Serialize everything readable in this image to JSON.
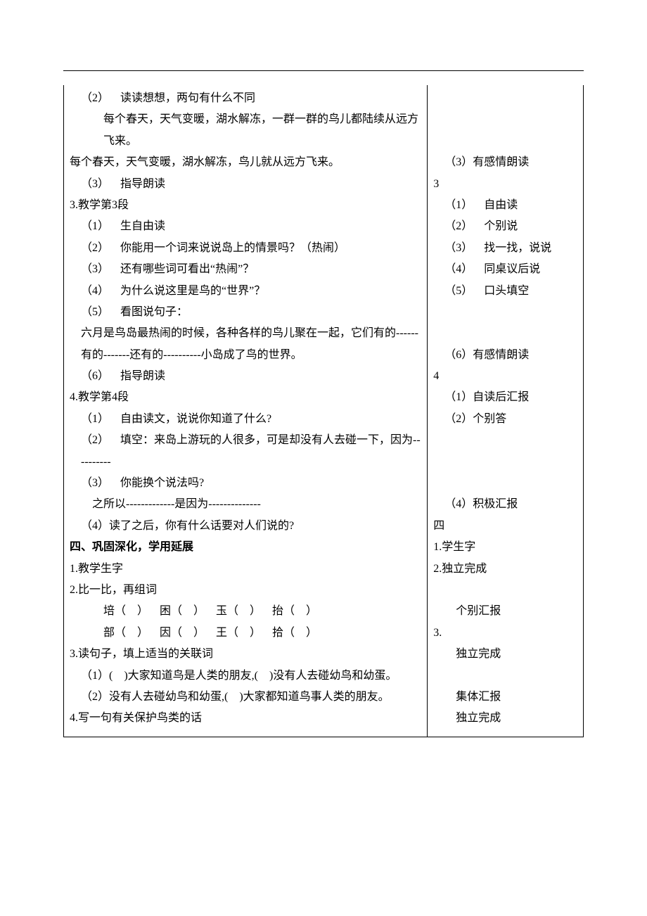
{
  "left": {
    "sec2_item1": "（2） 读读想想，两句有什么不同",
    "sec2_item1_a": "每个春天，天气变暖，湖水解冻，一群一群的鸟儿都陆续从远方飞来。",
    "sec2_item1_b": "每个春天，天气变暖，湖水解冻，鸟儿就从远方飞来。",
    "sec2_item2": "（3） 指导朗读",
    "sec3_title": "3.教学第3段",
    "sec3_1": "（1） 生自由读",
    "sec3_2": "（2） 你能用一个词来说说岛上的情景吗？（热闹）",
    "sec3_3": "（3） 还有哪些词可看出“热闹”？",
    "sec3_4": "（4） 为什么说这里是鸟的“世界”？",
    "sec3_5": "（5） 看图说句子：",
    "sec3_5_a": "六月是鸟岛最热闹的时候，各种各样的鸟儿聚在一起，它们有的------有的-------还有的----------小岛成了鸟的世界。",
    "sec3_6": "（6） 指导朗读",
    "sec4_title": "4.教学第4段",
    "sec4_1": "（1） 自由读文，说说你知道了什么?",
    "sec4_2": "（2） 填空：来岛上游玩的人很多，可是却没有人去碰一下，因为----------",
    "sec4_3": "（3） 你能换个说法吗?",
    "sec4_3_a": "之所以-------------是因为--------------",
    "sec4_4": "（4）读了之后，你有什么话要对人们说的?",
    "part4_title": "四、巩固深化，学用延展",
    "p4_1": "1.教学生字",
    "p4_2": "2.比一比，再组词",
    "p4_2_row1": "培（ ） 困（ ） 玉（ ） 抬（ ）",
    "p4_2_row2": "部（ ） 因（ ） 王（ ） 拾（ ）",
    "p4_3": "3.读句子，填上适当的关联词",
    "p4_3_1": "（1）( )大家知道鸟是人类的朋友,( )没有人去碰幼鸟和幼蛋。",
    "p4_3_2": "（2）没有人去碰幼鸟和幼蛋,( )大家都知道鸟事人类的朋友。",
    "p4_4": "4.写一句有关保护鸟类的话"
  },
  "right": {
    "r3_read": "（3）有感情朗读",
    "r3": "3",
    "r3_1": "（1） 自由读",
    "r3_2": "（2） 个别说",
    "r3_3": "（3） 找一找，说说",
    "r3_4": "（4） 同桌议后说",
    "r3_5": "（5） 口头填空",
    "r3_6": "（6）有感情朗读",
    "r4": "4",
    "r4_1": "（1）自读后汇报",
    "r4_2": "（2）个别答",
    "r4_4": "（4）积极汇报",
    "r_si": "四",
    "r_p1": "1.学生字",
    "r_p2": "2.独立完成",
    "r_p2_a": "个别汇报",
    "r_p3": "3.",
    "r_p3_a": "独立完成",
    "r_p3_b": "集体汇报",
    "r_p3_c": "独立完成"
  }
}
